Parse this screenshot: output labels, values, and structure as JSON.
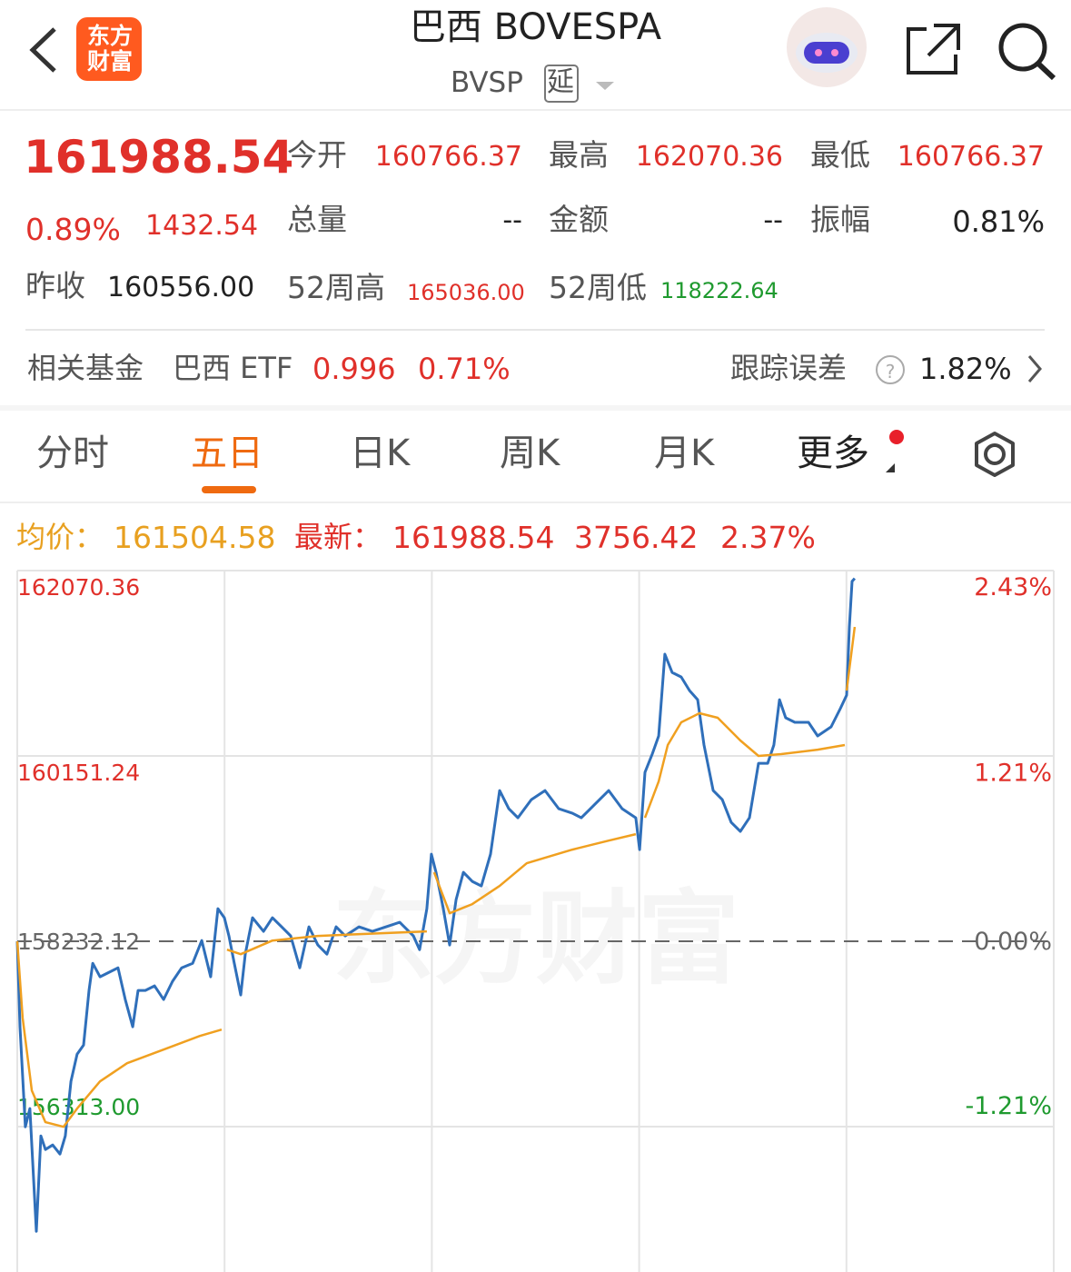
{
  "header": {
    "logo": [
      "东方",
      "财富"
    ],
    "title": "巴西 BOVESPA",
    "subtitle": "BVSP",
    "badge": "延"
  },
  "quote": {
    "price": "161988.54",
    "change_pct": "0.89%",
    "change": "1432.54",
    "open_label": "今开",
    "open": "160766.37",
    "high_label": "最高",
    "high": "162070.36",
    "low_label": "最低",
    "low": "160766.37",
    "volume_label": "总量",
    "volume": "--",
    "amount_label": "金额",
    "amount": "--",
    "amplitude_label": "振幅",
    "amplitude": "0.81%",
    "prev_close_label": "昨收",
    "prev_close": "160556.00",
    "high52_label": "52周高",
    "high52": "165036.00",
    "low52_label": "52周低",
    "low52": "118222.64"
  },
  "fund": {
    "label": "相关基金",
    "name": "巴西 ETF",
    "price": "0.996",
    "pct": "0.71%",
    "tracking_label": "跟踪误差",
    "tracking": "1.82%"
  },
  "tabs": [
    "分时",
    "五日",
    "日K",
    "周K",
    "月K",
    "更多"
  ],
  "info": {
    "avg_label": "均价：",
    "avg": "161504.58",
    "latest_label": "最新：",
    "latest": "161988.54",
    "change": "3756.42",
    "pct": "2.37%"
  },
  "watermark": "东方财富",
  "chart_data": {
    "type": "line",
    "grid": true,
    "xlim": [
      0,
      5
    ],
    "ylim": [
      154808,
      162070.36
    ],
    "yticks": [
      162070.36,
      160151.24,
      158232.12,
      {
        "value": 156313,
        "label": "156313.00"
      }
    ],
    "y2lim": [
      -2.17,
      2.43
    ],
    "y2ticks": [
      {
        "value": 2.43,
        "label": "2.43%"
      },
      {
        "value": 1.21,
        "label": "1.21%"
      },
      {
        "value": 0,
        "label": "0.00%"
      },
      {
        "value": -1.21,
        "label": "-1.21%"
      }
    ],
    "baseline": 158232.12,
    "series": [
      {
        "color": "#2f6fba",
        "x": [
          0,
          0.013,
          0.039,
          0.061,
          0.092,
          0.114,
          0.136,
          0.171,
          0.206,
          0.232,
          0.259,
          0.289,
          0.32,
          0.346,
          0.364,
          0.399,
          0.443,
          0.486,
          0.521,
          0.557,
          0.583,
          0.618,
          0.662,
          0.706,
          0.749,
          0.793,
          0.846,
          0.89,
          0.933,
          0.968,
          0.999,
          1.021,
          1.047,
          1.078,
          1.1,
          1.135,
          1.188,
          1.231,
          1.275,
          1.319,
          1.363,
          1.407,
          1.45,
          1.494,
          1.538,
          1.582,
          1.648,
          1.713,
          1.779,
          1.845,
          1.911,
          1.941,
          1.976,
          1.998,
          2.02,
          2.055,
          2.086,
          2.117,
          2.152,
          2.195,
          2.239,
          2.283,
          2.327,
          2.371,
          2.415,
          2.48,
          2.546,
          2.612,
          2.678,
          2.721,
          2.787,
          2.853,
          2.918,
          2.984,
          3.002,
          3.028,
          3.063,
          3.094,
          3.124,
          3.159,
          3.203,
          3.243,
          3.282,
          3.313,
          3.357,
          3.401,
          3.444,
          3.488,
          3.532,
          3.576,
          3.62,
          3.65,
          3.677,
          3.707,
          3.751,
          3.817,
          3.861,
          3.926,
          3.97,
          4.001,
          4.014,
          4.027,
          4.04
        ],
        "values": [
          158232,
          157347,
          156311,
          156500,
          155229,
          156217,
          156076,
          156123,
          156029,
          156217,
          156782,
          157064,
          157158,
          157723,
          158005,
          157864,
          157911,
          157958,
          157629,
          157347,
          157723,
          157723,
          157770,
          157629,
          157817,
          157958,
          158005,
          158240,
          157864,
          158570,
          158476,
          158288,
          158005,
          157676,
          158099,
          158476,
          158335,
          158476,
          158382,
          158288,
          157958,
          158382,
          158194,
          158099,
          158382,
          158288,
          158382,
          158335,
          158382,
          158429,
          158288,
          158146,
          158570,
          159134,
          158946,
          158570,
          158194,
          158664,
          158946,
          158852,
          158805,
          159134,
          159793,
          159605,
          159511,
          159699,
          159793,
          159605,
          159558,
          159511,
          159652,
          159793,
          159605,
          159511,
          159181,
          159981,
          160170,
          160358,
          161205,
          161016,
          160969,
          160828,
          160734,
          160264,
          159793,
          159699,
          159464,
          159370,
          159511,
          160075,
          160075,
          160264,
          160734,
          160546,
          160499,
          160499,
          160358,
          160452,
          160640,
          160781,
          161487,
          161958,
          161989
        ]
      },
      {
        "color": "#f0a020",
        "x": [
          0,
          0.026,
          0.07,
          0.136,
          0.223,
          0.289,
          0.399,
          0.53,
          0.706,
          0.881,
          0.986,
          1,
          1.012,
          1.078,
          1.231,
          1.45,
          1.976,
          2,
          2.011,
          2.086,
          2.195,
          2.327,
          2.458,
          2.678,
          2.853,
          2.984,
          3,
          3.028,
          3.094,
          3.138,
          3.203,
          3.291,
          3.379,
          3.488,
          3.576,
          3.685,
          3.861,
          3.992,
          4,
          4.001,
          4.04
        ],
        "values": [
          158232,
          157441,
          156688,
          156359,
          156311,
          156500,
          156782,
          156970,
          157111,
          157252,
          157318,
          null,
          158146,
          158099,
          158240,
          158288,
          158335,
          null,
          158946,
          158523,
          158617,
          158805,
          159040,
          159181,
          159275,
          159341,
          null,
          159511,
          159887,
          160264,
          160499,
          160593,
          160546,
          160311,
          160151,
          160170,
          160216,
          160264,
          null,
          160828,
          161487
        ]
      }
    ]
  }
}
